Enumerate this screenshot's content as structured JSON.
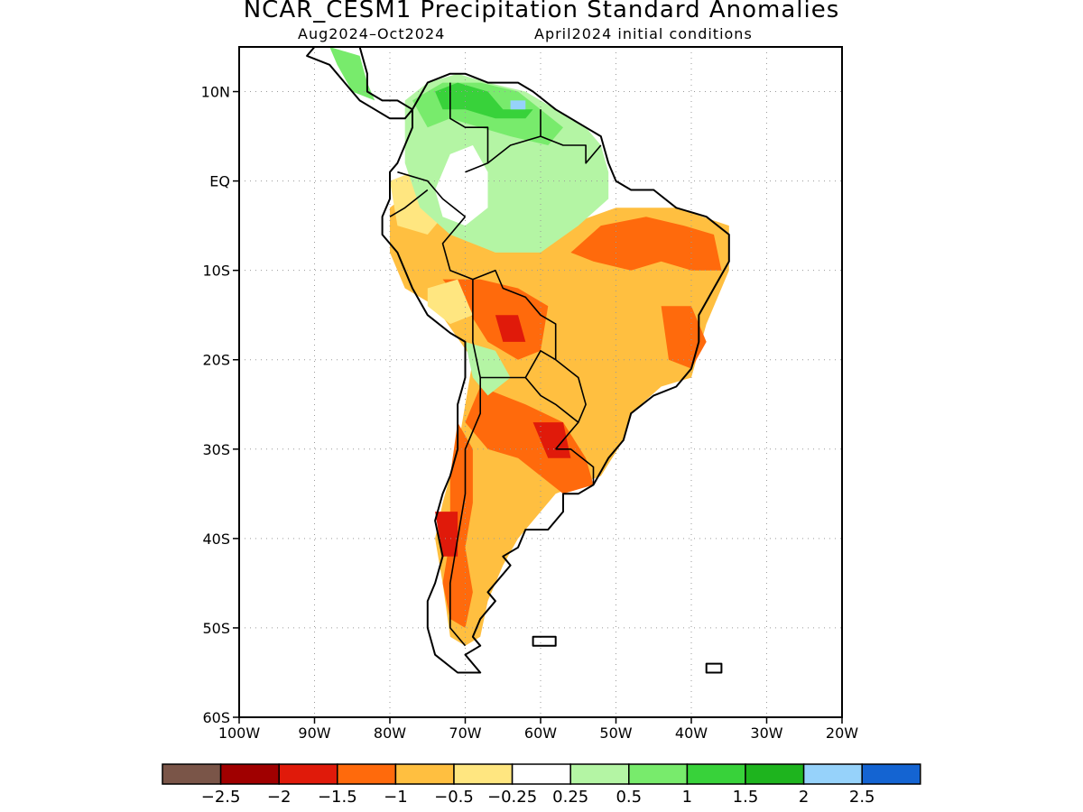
{
  "title": "NCAR_CESM1 Precipitation Standard Anomalies",
  "subtitle_period": "Aug2024–Oct2024",
  "subtitle_init": "April2024 initial conditions",
  "map": {
    "lon_range": [
      -100,
      -20
    ],
    "lat_range": [
      -60,
      15
    ],
    "lat_ticks": [
      {
        "value": 10,
        "label": "10N"
      },
      {
        "value": 0,
        "label": "EQ"
      },
      {
        "value": -10,
        "label": "10S"
      },
      {
        "value": -20,
        "label": "20S"
      },
      {
        "value": -30,
        "label": "30S"
      },
      {
        "value": -40,
        "label": "40S"
      },
      {
        "value": -50,
        "label": "50S"
      },
      {
        "value": -60,
        "label": "60S"
      }
    ],
    "lon_ticks": [
      {
        "value": -100,
        "label": "100W"
      },
      {
        "value": -90,
        "label": "90W"
      },
      {
        "value": -80,
        "label": "80W"
      },
      {
        "value": -70,
        "label": "70W"
      },
      {
        "value": -60,
        "label": "60W"
      },
      {
        "value": -50,
        "label": "50W"
      },
      {
        "value": -40,
        "label": "40W"
      },
      {
        "value": -30,
        "label": "30W"
      },
      {
        "value": -20,
        "label": "20W"
      }
    ]
  },
  "colorbar": {
    "colors": [
      "#7a5548",
      "#a00000",
      "#e01a0a",
      "#ff6a0c",
      "#ffbf40",
      "#ffe680",
      "#ffffff",
      "#b4f5a4",
      "#78eb6c",
      "#38d23a",
      "#1eb41e",
      "#96d2fa",
      "#1464d2"
    ],
    "labels": [
      "-2.5",
      "-2",
      "-1.5",
      "-1",
      "-0.5",
      "-0.25",
      "0.25",
      "0.5",
      "1",
      "1.5",
      "2",
      "2.5"
    ]
  },
  "land_color": "#ffffff",
  "fill_regions": [
    {
      "color": "#ffbf40",
      "points": [
        [
          -67,
          -2
        ],
        [
          -60,
          -6
        ],
        [
          -50,
          -3
        ],
        [
          -42,
          -3
        ],
        [
          -35,
          -5
        ],
        [
          -35,
          -10
        ],
        [
          -38,
          -16
        ],
        [
          -40,
          -22
        ],
        [
          -44,
          -23
        ],
        [
          -48,
          -26
        ],
        [
          -49,
          -29
        ],
        [
          -52,
          -33
        ],
        [
          -58,
          -35
        ],
        [
          -60,
          -37
        ],
        [
          -63,
          -40
        ],
        [
          -65,
          -43
        ],
        [
          -67,
          -47
        ],
        [
          -68,
          -51
        ],
        [
          -70,
          -52
        ],
        [
          -72,
          -51
        ],
        [
          -73,
          -45
        ],
        [
          -74,
          -40
        ],
        [
          -73,
          -36
        ],
        [
          -71,
          -30
        ],
        [
          -70,
          -25
        ],
        [
          -69,
          -20
        ],
        [
          -74,
          -14
        ],
        [
          -78,
          -12
        ],
        [
          -80,
          -8
        ],
        [
          -80,
          -3
        ],
        [
          -77,
          -1
        ],
        [
          -73,
          -2
        ]
      ]
    },
    {
      "color": "#ffe680",
      "points": [
        [
          -80,
          0
        ],
        [
          -77,
          1
        ],
        [
          -74,
          0
        ],
        [
          -72,
          -3
        ],
        [
          -75,
          -6
        ],
        [
          -79,
          -5
        ]
      ]
    },
    {
      "color": "#ff6a0c",
      "points": [
        [
          -52,
          -5
        ],
        [
          -46,
          -4
        ],
        [
          -41,
          -5
        ],
        [
          -37,
          -6
        ],
        [
          -36,
          -10
        ],
        [
          -40,
          -10
        ],
        [
          -44,
          -9
        ],
        [
          -48,
          -10
        ],
        [
          -53,
          -9
        ],
        [
          -56,
          -8
        ]
      ]
    },
    {
      "color": "#ff6a0c",
      "points": [
        [
          -73,
          -11
        ],
        [
          -68,
          -11
        ],
        [
          -63,
          -12
        ],
        [
          -59,
          -14
        ],
        [
          -60,
          -19
        ],
        [
          -63,
          -20
        ],
        [
          -67,
          -18
        ],
        [
          -70,
          -14
        ]
      ]
    },
    {
      "color": "#ff6a0c",
      "points": [
        [
          -68,
          -23
        ],
        [
          -62,
          -25
        ],
        [
          -57,
          -27
        ],
        [
          -54,
          -31
        ],
        [
          -53,
          -34
        ],
        [
          -57,
          -35
        ],
        [
          -60,
          -33
        ],
        [
          -63,
          -31
        ],
        [
          -67,
          -30
        ],
        [
          -70,
          -27
        ]
      ]
    },
    {
      "color": "#ff6a0c",
      "points": [
        [
          -71,
          -27
        ],
        [
          -69,
          -30
        ],
        [
          -69,
          -36
        ],
        [
          -70,
          -41
        ],
        [
          -69,
          -46
        ],
        [
          -70,
          -50
        ],
        [
          -72,
          -49
        ],
        [
          -73,
          -45
        ],
        [
          -72,
          -40
        ],
        [
          -72,
          -33
        ]
      ]
    },
    {
      "color": "#ff6a0c",
      "points": [
        [
          -44,
          -14
        ],
        [
          -40,
          -14
        ],
        [
          -38,
          -18
        ],
        [
          -40,
          -21
        ],
        [
          -43,
          -20
        ]
      ]
    },
    {
      "color": "#e01a0a",
      "points": [
        [
          -66,
          -15
        ],
        [
          -63,
          -15
        ],
        [
          -62,
          -18
        ],
        [
          -65,
          -18
        ]
      ]
    },
    {
      "color": "#e01a0a",
      "points": [
        [
          -61,
          -27
        ],
        [
          -57,
          -27
        ],
        [
          -56,
          -31
        ],
        [
          -59,
          -31
        ]
      ]
    },
    {
      "color": "#e01a0a",
      "points": [
        [
          -74,
          -37
        ],
        [
          -71,
          -37
        ],
        [
          -71,
          -42
        ],
        [
          -73,
          -42
        ]
      ]
    },
    {
      "color": "#b4f5a4",
      "points": [
        [
          -78,
          9
        ],
        [
          -75,
          11
        ],
        [
          -71,
          12
        ],
        [
          -67,
          11
        ],
        [
          -62,
          10
        ],
        [
          -58,
          8
        ],
        [
          -54,
          6
        ],
        [
          -52,
          4
        ],
        [
          -51,
          1
        ],
        [
          -51,
          -2
        ],
        [
          -55,
          -5
        ],
        [
          -60,
          -8
        ],
        [
          -66,
          -8
        ],
        [
          -72,
          -6
        ],
        [
          -76,
          -3
        ],
        [
          -78,
          2
        ]
      ]
    },
    {
      "color": "#ffffff",
      "points": [
        [
          -72,
          3
        ],
        [
          -69,
          4
        ],
        [
          -67,
          1
        ],
        [
          -67,
          -3
        ],
        [
          -70,
          -5
        ],
        [
          -73,
          -4
        ],
        [
          -74,
          -1
        ]
      ]
    },
    {
      "color": "#78eb6c",
      "points": [
        [
          -77,
          9
        ],
        [
          -73,
          11
        ],
        [
          -68,
          11
        ],
        [
          -63,
          10
        ],
        [
          -60,
          8
        ],
        [
          -57,
          6
        ],
        [
          -59,
          4
        ],
        [
          -64,
          5
        ],
        [
          -68,
          6
        ],
        [
          -72,
          7
        ],
        [
          -75,
          6
        ]
      ]
    },
    {
      "color": "#38d23a",
      "points": [
        [
          -74,
          10
        ],
        [
          -71,
          11
        ],
        [
          -67,
          10
        ],
        [
          -65,
          8
        ],
        [
          -61,
          8
        ],
        [
          -62,
          7
        ],
        [
          -66,
          7
        ],
        [
          -70,
          8
        ],
        [
          -73,
          8
        ]
      ]
    },
    {
      "color": "#96d2fa",
      "points": [
        [
          -64,
          9
        ],
        [
          -62,
          9
        ],
        [
          -62,
          8
        ],
        [
          -64,
          8
        ]
      ]
    },
    {
      "color": "#78eb6c",
      "points": [
        [
          -88,
          15
        ],
        [
          -84,
          14
        ],
        [
          -83,
          11
        ],
        [
          -82,
          9
        ],
        [
          -85,
          10
        ],
        [
          -87,
          13
        ]
      ]
    },
    {
      "color": "#b4f5a4",
      "points": [
        [
          -70,
          -18
        ],
        [
          -66,
          -19
        ],
        [
          -64,
          -22
        ],
        [
          -67,
          -24
        ],
        [
          -69,
          -22
        ]
      ]
    },
    {
      "color": "#ffe680",
      "points": [
        [
          -75,
          -12
        ],
        [
          -71,
          -11
        ],
        [
          -69,
          -15
        ],
        [
          -72,
          -16
        ],
        [
          -75,
          -14
        ]
      ]
    }
  ],
  "coastlines": [
    {
      "name": "south-america-outline",
      "points": [
        [
          -77,
          8
        ],
        [
          -75,
          11
        ],
        [
          -72,
          12
        ],
        [
          -70,
          12
        ],
        [
          -67,
          11
        ],
        [
          -63,
          11
        ],
        [
          -61,
          10
        ],
        [
          -58,
          8
        ],
        [
          -54,
          6
        ],
        [
          -52,
          5
        ],
        [
          -51,
          2
        ],
        [
          -50,
          0
        ],
        [
          -48,
          -1
        ],
        [
          -45,
          -1
        ],
        [
          -42,
          -3
        ],
        [
          -38,
          -4
        ],
        [
          -35,
          -6
        ],
        [
          -35,
          -9
        ],
        [
          -37,
          -12
        ],
        [
          -39,
          -15
        ],
        [
          -39,
          -18
        ],
        [
          -40,
          -21
        ],
        [
          -42,
          -23
        ],
        [
          -45,
          -24
        ],
        [
          -48,
          -26
        ],
        [
          -49,
          -29
        ],
        [
          -51,
          -31
        ],
        [
          -53,
          -34
        ],
        [
          -55,
          -35
        ],
        [
          -57,
          -35
        ],
        [
          -57,
          -37
        ],
        [
          -59,
          -39
        ],
        [
          -62,
          -39
        ],
        [
          -63,
          -41
        ],
        [
          -65,
          -42
        ],
        [
          -64,
          -43
        ],
        [
          -66,
          -45
        ],
        [
          -67,
          -46
        ],
        [
          -66,
          -47
        ],
        [
          -68,
          -49
        ],
        [
          -69,
          -51
        ],
        [
          -68,
          -52
        ],
        [
          -70,
          -53
        ],
        [
          -68,
          -55
        ],
        [
          -71,
          -55
        ],
        [
          -74,
          -53
        ],
        [
          -75,
          -50
        ],
        [
          -75,
          -47
        ],
        [
          -74,
          -45
        ],
        [
          -73,
          -42
        ],
        [
          -74,
          -38
        ],
        [
          -73,
          -35
        ],
        [
          -72,
          -33
        ],
        [
          -71,
          -30
        ],
        [
          -71,
          -25
        ],
        [
          -70,
          -22
        ],
        [
          -70,
          -18
        ],
        [
          -72,
          -17
        ],
        [
          -75,
          -15
        ],
        [
          -77,
          -12
        ],
        [
          -79,
          -8
        ],
        [
          -81,
          -6
        ],
        [
          -81,
          -4
        ],
        [
          -80,
          -2
        ],
        [
          -80,
          1
        ],
        [
          -79,
          2
        ],
        [
          -78,
          4
        ],
        [
          -77,
          6
        ]
      ]
    },
    {
      "name": "central-america-outline",
      "points": [
        [
          -90,
          15
        ],
        [
          -87,
          15
        ],
        [
          -84,
          15
        ],
        [
          -83,
          12
        ],
        [
          -83,
          10
        ],
        [
          -81,
          9
        ],
        [
          -79,
          9
        ],
        [
          -77,
          8
        ],
        [
          -78,
          7
        ],
        [
          -80,
          7
        ],
        [
          -82,
          8
        ],
        [
          -84,
          9
        ],
        [
          -86,
          11
        ],
        [
          -88,
          13
        ],
        [
          -91,
          14
        ]
      ]
    },
    {
      "name": "falkland-islands",
      "points": [
        [
          -61,
          -51
        ],
        [
          -58,
          -51
        ],
        [
          -58,
          -52
        ],
        [
          -61,
          -52
        ]
      ]
    },
    {
      "name": "south-georgia",
      "points": [
        [
          -38,
          -54
        ],
        [
          -36,
          -54
        ],
        [
          -36,
          -55
        ],
        [
          -38,
          -55
        ]
      ]
    }
  ],
  "borders": [
    {
      "name": "colombia-venezuela",
      "points": [
        [
          -72,
          11
        ],
        [
          -72,
          7
        ],
        [
          -70,
          6
        ],
        [
          -67,
          6
        ],
        [
          -67,
          2
        ],
        [
          -70,
          1
        ]
      ]
    },
    {
      "name": "colombia-peru-ecuador",
      "points": [
        [
          -79,
          1
        ],
        [
          -75,
          0
        ],
        [
          -73,
          -2
        ],
        [
          -70,
          -4
        ]
      ]
    },
    {
      "name": "ecuador-peru",
      "points": [
        [
          -80,
          -4
        ],
        [
          -78,
          -3
        ],
        [
          -75,
          -1
        ]
      ]
    },
    {
      "name": "brazil-peru-bolivia",
      "points": [
        [
          -70,
          -4
        ],
        [
          -73,
          -7
        ],
        [
          -72,
          -10
        ],
        [
          -69,
          -11
        ],
        [
          -66,
          -10
        ],
        [
          -65,
          -12
        ],
        [
          -62,
          -13
        ],
        [
          -60,
          -15
        ],
        [
          -58,
          -16
        ],
        [
          -58,
          -20
        ]
      ]
    },
    {
      "name": "peru-bolivia-chile",
      "points": [
        [
          -69,
          -11
        ],
        [
          -69,
          -15
        ],
        [
          -69,
          -18
        ],
        [
          -68,
          -22
        ]
      ]
    },
    {
      "name": "bolivia-argentina",
      "points": [
        [
          -68,
          -22
        ],
        [
          -65,
          -22
        ],
        [
          -62,
          -22
        ],
        [
          -60,
          -19
        ],
        [
          -58,
          -20
        ]
      ]
    },
    {
      "name": "paraguay-border",
      "points": [
        [
          -62,
          -22
        ],
        [
          -60,
          -24
        ],
        [
          -58,
          -25
        ],
        [
          -55,
          -27
        ],
        [
          -54,
          -25
        ],
        [
          -55,
          -22
        ],
        [
          -58,
          -20
        ]
      ]
    },
    {
      "name": "chile-argentina",
      "points": [
        [
          -68,
          -22
        ],
        [
          -68,
          -26
        ],
        [
          -70,
          -30
        ],
        [
          -70,
          -35
        ],
        [
          -71,
          -40
        ],
        [
          -72,
          -45
        ],
        [
          -72,
          -50
        ],
        [
          -70,
          -52
        ]
      ]
    },
    {
      "name": "uruguay-border",
      "points": [
        [
          -58,
          -30
        ],
        [
          -56,
          -30
        ],
        [
          -53,
          -32
        ],
        [
          -53,
          -34
        ]
      ]
    },
    {
      "name": "argentina-brazil",
      "points": [
        [
          -55,
          -27
        ],
        [
          -57,
          -29
        ],
        [
          -58,
          -30
        ]
      ]
    },
    {
      "name": "guianas",
      "points": [
        [
          -60,
          8
        ],
        [
          -60,
          5
        ],
        [
          -57,
          4
        ],
        [
          -54,
          4
        ],
        [
          -54,
          2
        ],
        [
          -52,
          4
        ]
      ]
    },
    {
      "name": "venezuela-brazil",
      "points": [
        [
          -67,
          2
        ],
        [
          -64,
          4
        ],
        [
          -60,
          5
        ]
      ]
    }
  ]
}
